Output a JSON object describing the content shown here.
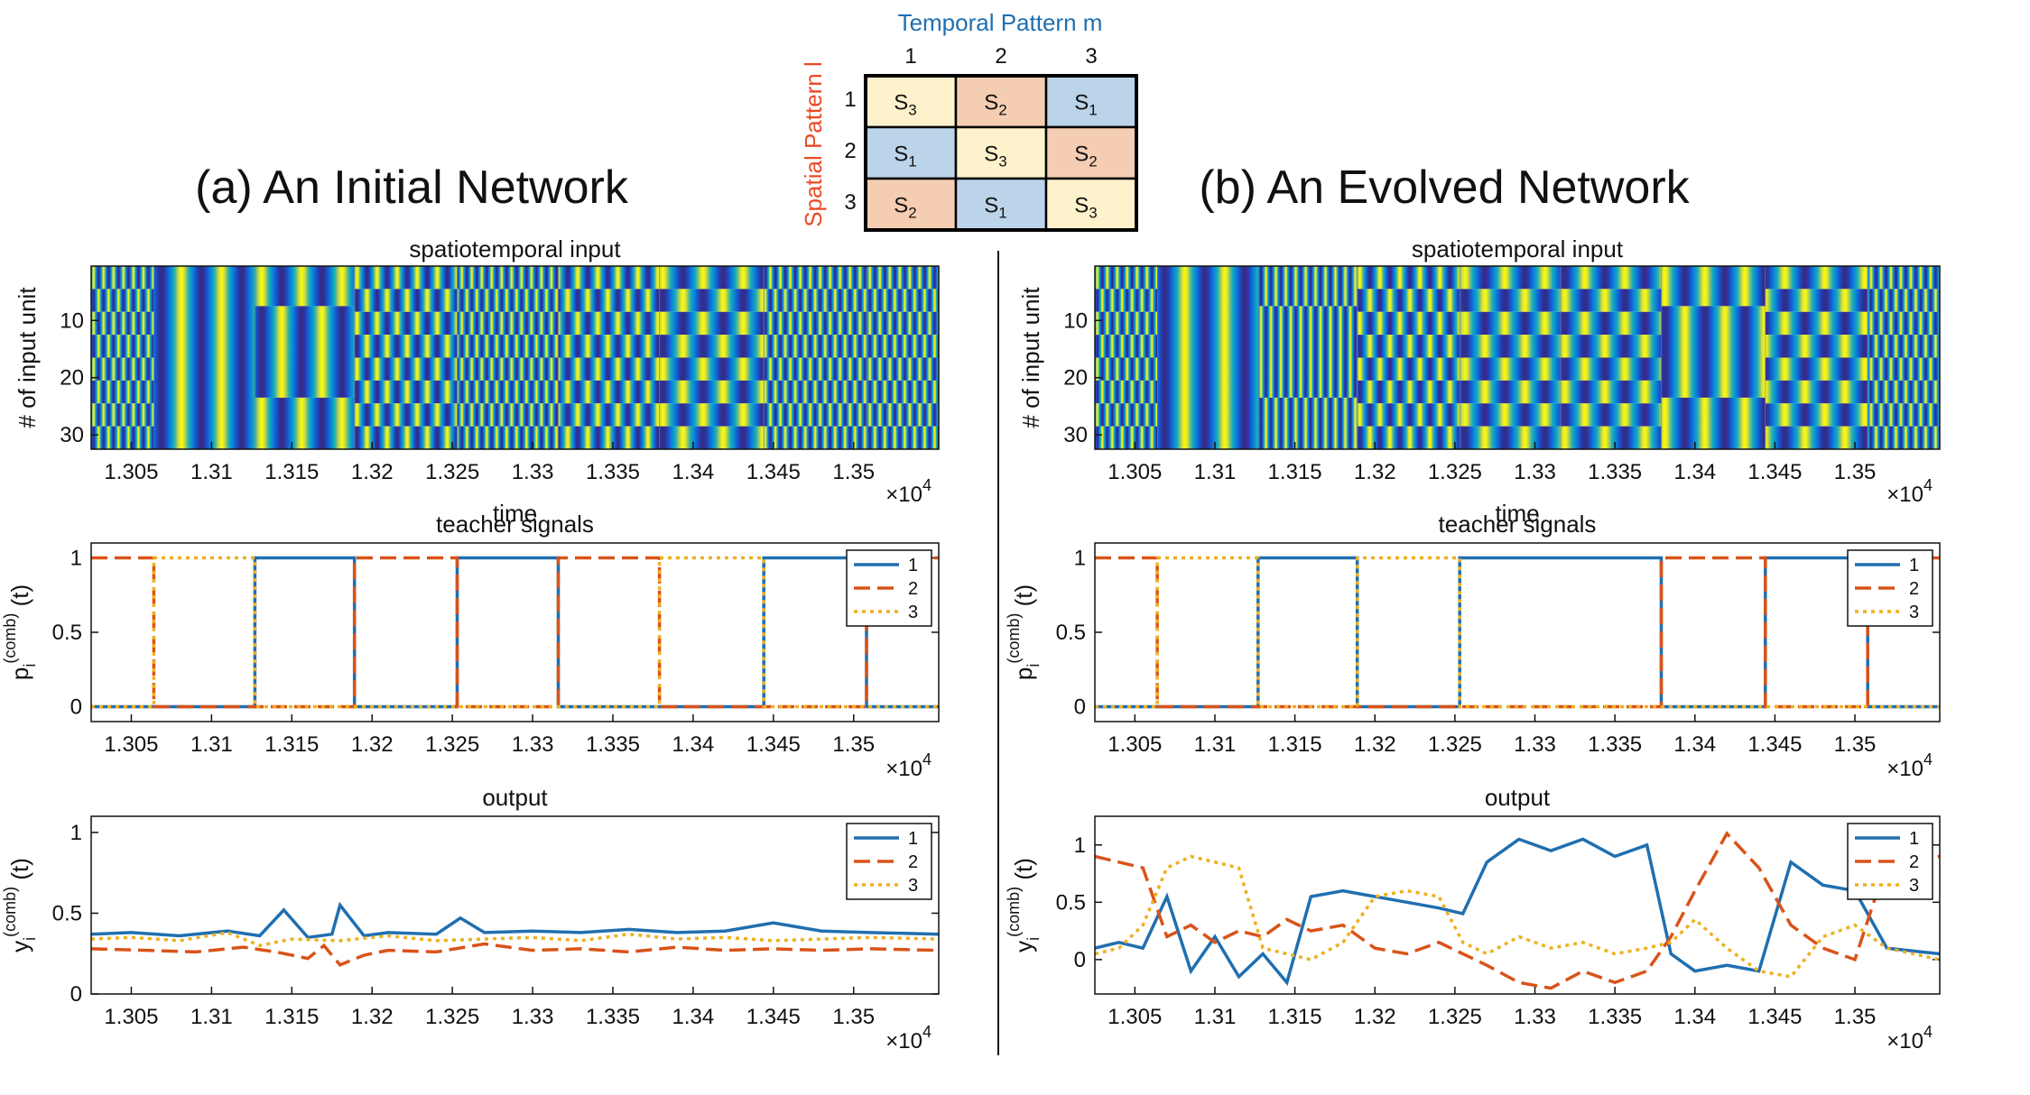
{
  "matrix": {
    "top_label": "Temporal Pattern m",
    "side_label": "Spatial Pattern l",
    "col_headers": [
      "1",
      "2",
      "3"
    ],
    "row_headers": [
      "1",
      "2",
      "3"
    ],
    "cells": [
      [
        "S3",
        "S2",
        "S1"
      ],
      [
        "S1",
        "S3",
        "S2"
      ],
      [
        "S2",
        "S1",
        "S3"
      ]
    ],
    "colors": {
      "S1": "#bcd4ea",
      "S2": "#f5cdb3",
      "S3": "#fdf2cc"
    }
  },
  "panels": [
    {
      "id": "a",
      "title": "(a)  An Initial Network"
    },
    {
      "id": "b",
      "title": "(b)  An Evolved Network"
    }
  ],
  "series_colors": [
    "#1f6fb0",
    "#d95319",
    "#edb120"
  ],
  "chart_data": [
    {
      "panel": "a",
      "type": "heatmap",
      "title": "spatiotemporal input",
      "xlabel": "time",
      "ylabel": "# of input unit",
      "exponent": "×10^4",
      "xlim": [
        1.3025,
        1.3553
      ],
      "xticks": [
        "1.305",
        "1.31",
        "1.315",
        "1.32",
        "1.325",
        "1.33",
        "1.335",
        "1.34",
        "1.345",
        "1.35"
      ],
      "yticks": [
        "10",
        "20",
        "30"
      ],
      "ylim": [
        1,
        32
      ],
      "segments": [
        {
          "start": 1.3025,
          "end": 1.3064,
          "temporal": 1,
          "spatial": 3
        },
        {
          "start": 1.3064,
          "end": 1.3127,
          "temporal": 3,
          "spatial": 1
        },
        {
          "start": 1.3127,
          "end": 1.3189,
          "temporal": 3,
          "spatial": 2
        },
        {
          "start": 1.3189,
          "end": 1.3253,
          "temporal": 2,
          "spatial": 3
        },
        {
          "start": 1.3253,
          "end": 1.3316,
          "temporal": 1,
          "spatial": 3
        },
        {
          "start": 1.3316,
          "end": 1.3379,
          "temporal": 2,
          "spatial": 3
        },
        {
          "start": 1.3379,
          "end": 1.3444,
          "temporal": 3,
          "spatial": 3
        },
        {
          "start": 1.3444,
          "end": 1.3508,
          "temporal": 1,
          "spatial": 3
        },
        {
          "start": 1.3508,
          "end": 1.3553,
          "temporal": 1,
          "spatial": 3
        }
      ]
    },
    {
      "panel": "a",
      "type": "line",
      "title": "teacher signals",
      "ylabel": "p_i^(comb) (t)",
      "exponent": "×10^4",
      "xlim": [
        1.3025,
        1.3553
      ],
      "ylim": [
        -0.1,
        1.1
      ],
      "yticks": [
        "0",
        "0.5",
        "1"
      ],
      "xticks": [
        "1.305",
        "1.31",
        "1.315",
        "1.32",
        "1.325",
        "1.33",
        "1.335",
        "1.34",
        "1.345",
        "1.35"
      ],
      "legend": "top-right",
      "series": [
        {
          "name": "1",
          "x": [
            1.3025,
            1.3127,
            1.3127,
            1.3189,
            1.3189,
            1.3253,
            1.3253,
            1.3316,
            1.3316,
            1.3444,
            1.3444,
            1.3508,
            1.3508,
            1.3553
          ],
          "y": [
            0,
            0,
            1,
            1,
            0,
            0,
            1,
            1,
            0,
            0,
            1,
            1,
            0,
            0
          ]
        },
        {
          "name": "2",
          "x": [
            1.3025,
            1.3064,
            1.3064,
            1.3189,
            1.3189,
            1.3253,
            1.3253,
            1.3316,
            1.3316,
            1.3379,
            1.3379,
            1.3508,
            1.3508,
            1.3553
          ],
          "y": [
            1,
            1,
            0,
            0,
            1,
            1,
            0,
            0,
            1,
            1,
            0,
            0,
            1,
            1
          ]
        },
        {
          "name": "3",
          "x": [
            1.3025,
            1.3064,
            1.3064,
            1.3127,
            1.3127,
            1.3379,
            1.3379,
            1.3444,
            1.3444,
            1.3553
          ],
          "y": [
            0,
            0,
            1,
            1,
            0,
            0,
            1,
            1,
            0,
            0
          ]
        }
      ]
    },
    {
      "panel": "a",
      "type": "line",
      "title": "output",
      "ylabel": "y_i^(comb) (t)",
      "exponent": "×10^4",
      "xlim": [
        1.3025,
        1.3553
      ],
      "ylim": [
        0,
        1.1
      ],
      "yticks": [
        "0",
        "0.5",
        "1"
      ],
      "xticks": [
        "1.305",
        "1.31",
        "1.315",
        "1.32",
        "1.325",
        "1.33",
        "1.335",
        "1.34",
        "1.345",
        "1.35"
      ],
      "legend": "top-right",
      "series": [
        {
          "name": "1",
          "x": [
            1.3025,
            1.305,
            1.308,
            1.311,
            1.313,
            1.3145,
            1.316,
            1.3175,
            1.318,
            1.3195,
            1.321,
            1.324,
            1.3255,
            1.327,
            1.33,
            1.333,
            1.336,
            1.339,
            1.342,
            1.345,
            1.348,
            1.351,
            1.3553
          ],
          "y": [
            0.37,
            0.38,
            0.36,
            0.39,
            0.36,
            0.52,
            0.35,
            0.37,
            0.55,
            0.36,
            0.38,
            0.37,
            0.47,
            0.38,
            0.39,
            0.38,
            0.4,
            0.38,
            0.39,
            0.44,
            0.39,
            0.38,
            0.37
          ]
        },
        {
          "name": "2",
          "x": [
            1.3025,
            1.306,
            1.309,
            1.312,
            1.314,
            1.316,
            1.317,
            1.318,
            1.3195,
            1.321,
            1.324,
            1.327,
            1.33,
            1.333,
            1.336,
            1.339,
            1.342,
            1.345,
            1.348,
            1.351,
            1.3553
          ],
          "y": [
            0.28,
            0.27,
            0.26,
            0.29,
            0.26,
            0.22,
            0.3,
            0.18,
            0.24,
            0.27,
            0.26,
            0.31,
            0.27,
            0.28,
            0.26,
            0.29,
            0.27,
            0.28,
            0.27,
            0.28,
            0.27
          ]
        },
        {
          "name": "3",
          "x": [
            1.3025,
            1.305,
            1.308,
            1.311,
            1.313,
            1.315,
            1.318,
            1.321,
            1.324,
            1.327,
            1.33,
            1.333,
            1.336,
            1.339,
            1.342,
            1.345,
            1.348,
            1.351,
            1.3553
          ],
          "y": [
            0.34,
            0.35,
            0.33,
            0.38,
            0.3,
            0.34,
            0.33,
            0.36,
            0.33,
            0.34,
            0.35,
            0.33,
            0.37,
            0.34,
            0.35,
            0.33,
            0.34,
            0.35,
            0.34
          ]
        }
      ]
    },
    {
      "panel": "b",
      "type": "heatmap",
      "title": "spatiotemporal input",
      "xlabel": "time",
      "ylabel": "# of input unit",
      "exponent": "×10^4",
      "xlim": [
        1.3025,
        1.3553
      ],
      "xticks": [
        "1.305",
        "1.31",
        "1.315",
        "1.32",
        "1.325",
        "1.33",
        "1.335",
        "1.34",
        "1.345",
        "1.35"
      ],
      "yticks": [
        "10",
        "20",
        "30"
      ],
      "ylim": [
        1,
        32
      ],
      "segments": [
        {
          "start": 1.3025,
          "end": 1.3064,
          "temporal": 1,
          "spatial": 3
        },
        {
          "start": 1.3064,
          "end": 1.3127,
          "temporal": 3,
          "spatial": 1
        },
        {
          "start": 1.3127,
          "end": 1.3189,
          "temporal": 1,
          "spatial": 2
        },
        {
          "start": 1.3189,
          "end": 1.3253,
          "temporal": 2,
          "spatial": 3
        },
        {
          "start": 1.3253,
          "end": 1.3316,
          "temporal": 3,
          "spatial": 3
        },
        {
          "start": 1.3316,
          "end": 1.3379,
          "temporal": 3,
          "spatial": 3
        },
        {
          "start": 1.3379,
          "end": 1.3444,
          "temporal": 3,
          "spatial": 2
        },
        {
          "start": 1.3444,
          "end": 1.3508,
          "temporal": 3,
          "spatial": 3
        },
        {
          "start": 1.3508,
          "end": 1.3553,
          "temporal": 1,
          "spatial": 3
        }
      ]
    },
    {
      "panel": "b",
      "type": "line",
      "title": "teacher signals",
      "ylabel": "p_i^(comb) (t)",
      "exponent": "×10^4",
      "xlim": [
        1.3025,
        1.3553
      ],
      "ylim": [
        -0.1,
        1.1
      ],
      "yticks": [
        "0",
        "0.5",
        "1"
      ],
      "xticks": [
        "1.305",
        "1.31",
        "1.315",
        "1.32",
        "1.325",
        "1.33",
        "1.335",
        "1.34",
        "1.345",
        "1.35"
      ],
      "legend": "top-right",
      "series": [
        {
          "name": "1",
          "x": [
            1.3025,
            1.3127,
            1.3127,
            1.3189,
            1.3189,
            1.3253,
            1.3253,
            1.3379,
            1.3379,
            1.3444,
            1.3444,
            1.3508,
            1.3508,
            1.3553
          ],
          "y": [
            0,
            0,
            1,
            1,
            0,
            0,
            1,
            1,
            0,
            0,
            1,
            1,
            0,
            0
          ]
        },
        {
          "name": "2",
          "x": [
            1.3025,
            1.3064,
            1.3064,
            1.3379,
            1.3379,
            1.3444,
            1.3444,
            1.3508,
            1.3508,
            1.3553
          ],
          "y": [
            1,
            1,
            0,
            0,
            1,
            1,
            0,
            0,
            1,
            1
          ]
        },
        {
          "name": "3",
          "x": [
            1.3025,
            1.3064,
            1.3064,
            1.3127,
            1.3127,
            1.3189,
            1.3189,
            1.3253,
            1.3253,
            1.3553
          ],
          "y": [
            0,
            0,
            1,
            1,
            0,
            0,
            1,
            1,
            0,
            0
          ]
        }
      ]
    },
    {
      "panel": "b",
      "type": "line",
      "title": "output",
      "ylabel": "y_i^(comb) (t)",
      "exponent": "×10^4",
      "xlim": [
        1.3025,
        1.3553
      ],
      "ylim": [
        -0.3,
        1.25
      ],
      "yticks": [
        "0",
        "0.5",
        "1"
      ],
      "xticks": [
        "1.305",
        "1.31",
        "1.315",
        "1.32",
        "1.325",
        "1.33",
        "1.335",
        "1.34",
        "1.345",
        "1.35"
      ],
      "legend": "top-right",
      "series": [
        {
          "name": "1",
          "x": [
            1.3025,
            1.304,
            1.3055,
            1.307,
            1.3085,
            1.31,
            1.3115,
            1.313,
            1.3145,
            1.316,
            1.318,
            1.32,
            1.322,
            1.324,
            1.3255,
            1.327,
            1.329,
            1.331,
            1.333,
            1.335,
            1.337,
            1.3385,
            1.34,
            1.342,
            1.344,
            1.346,
            1.348,
            1.35,
            1.352,
            1.3553
          ],
          "y": [
            0.1,
            0.15,
            0.1,
            0.55,
            -0.1,
            0.2,
            -0.15,
            0.05,
            -0.2,
            0.55,
            0.6,
            0.55,
            0.5,
            0.45,
            0.4,
            0.85,
            1.05,
            0.95,
            1.05,
            0.9,
            1.0,
            0.05,
            -0.1,
            -0.05,
            -0.1,
            0.85,
            0.65,
            0.6,
            0.1,
            0.05
          ]
        },
        {
          "name": "2",
          "x": [
            1.3025,
            1.304,
            1.3055,
            1.307,
            1.3085,
            1.31,
            1.3115,
            1.313,
            1.3145,
            1.316,
            1.318,
            1.32,
            1.322,
            1.324,
            1.3255,
            1.327,
            1.329,
            1.331,
            1.333,
            1.335,
            1.337,
            1.3385,
            1.34,
            1.342,
            1.344,
            1.346,
            1.348,
            1.35,
            1.352,
            1.3553
          ],
          "y": [
            0.9,
            0.85,
            0.8,
            0.2,
            0.3,
            0.15,
            0.25,
            0.2,
            0.35,
            0.25,
            0.3,
            0.1,
            0.05,
            0.15,
            0.05,
            -0.05,
            -0.2,
            -0.25,
            -0.1,
            -0.2,
            -0.1,
            0.2,
            0.6,
            1.1,
            0.8,
            0.3,
            0.1,
            0.0,
            0.85,
            0.9
          ]
        },
        {
          "name": "3",
          "x": [
            1.3025,
            1.304,
            1.3055,
            1.307,
            1.3085,
            1.31,
            1.3115,
            1.313,
            1.3145,
            1.316,
            1.318,
            1.32,
            1.322,
            1.324,
            1.3255,
            1.327,
            1.329,
            1.331,
            1.333,
            1.335,
            1.337,
            1.3385,
            1.34,
            1.342,
            1.344,
            1.346,
            1.348,
            1.35,
            1.352,
            1.3553
          ],
          "y": [
            0.05,
            0.1,
            0.3,
            0.8,
            0.9,
            0.85,
            0.8,
            0.1,
            0.05,
            0.0,
            0.15,
            0.55,
            0.6,
            0.55,
            0.15,
            0.05,
            0.2,
            0.1,
            0.15,
            0.05,
            0.1,
            0.15,
            0.35,
            0.1,
            -0.1,
            -0.15,
            0.2,
            0.3,
            0.1,
            0.0
          ]
        }
      ]
    }
  ]
}
